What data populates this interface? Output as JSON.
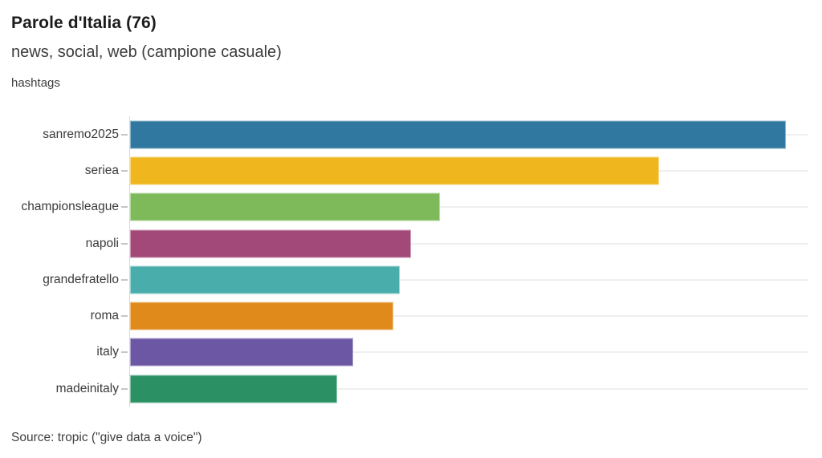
{
  "header": {
    "title": "Parole d'Italia (76)",
    "subtitle": "news, social, web (campione casuale)",
    "axis_caption": "hashtags"
  },
  "footer": {
    "source": "Source: tropic (\"give data a voice\")"
  },
  "chart_data": {
    "type": "bar",
    "orientation": "horizontal",
    "title": "Parole d'Italia (76)",
    "subtitle": "news, social, web (campione casuale)",
    "ylabel": "hashtags",
    "xlabel": "",
    "categories": [
      "sanremo2025",
      "seriea",
      "championsleague",
      "napoli",
      "grandefratello",
      "roma",
      "italy",
      "madeinitaly"
    ],
    "values_pct_of_axis": [
      96.7,
      78.0,
      45.7,
      41.4,
      39.8,
      38.8,
      32.9,
      30.5
    ],
    "xlim": [
      0,
      100
    ],
    "axis_tick_labels_shown": false,
    "grid": "per-row horizontal gridlines",
    "legend": "none",
    "bar_colors": [
      "#30789F",
      "#EFB71D",
      "#7EB95A",
      "#A24979",
      "#49ADAB",
      "#E08A1B",
      "#6C57A5",
      "#2B9164"
    ],
    "colors": {
      "title_text": "#1c1c1c",
      "subtitle_text": "#3c3c3c",
      "label_text": "#3a3a3a",
      "axis_line": "#d9d9d9",
      "gridline": "#efefef",
      "background": "#ffffff"
    },
    "source": "Source: tropic (\"give data a voice\")"
  }
}
